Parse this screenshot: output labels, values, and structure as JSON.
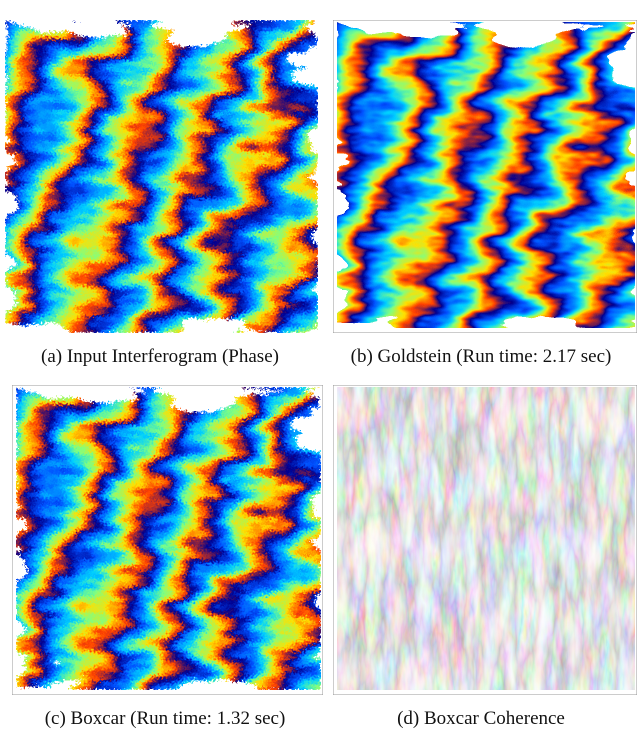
{
  "figure": {
    "panels": [
      {
        "caption": "(a) Input Interferogram (Phase)"
      },
      {
        "caption": "(b) Goldstein (Run time: 2.17 sec)"
      },
      {
        "caption": "(c) Boxcar (Run time: 1.32 sec)"
      },
      {
        "caption": "(d) Boxcar Coherence"
      }
    ]
  }
}
